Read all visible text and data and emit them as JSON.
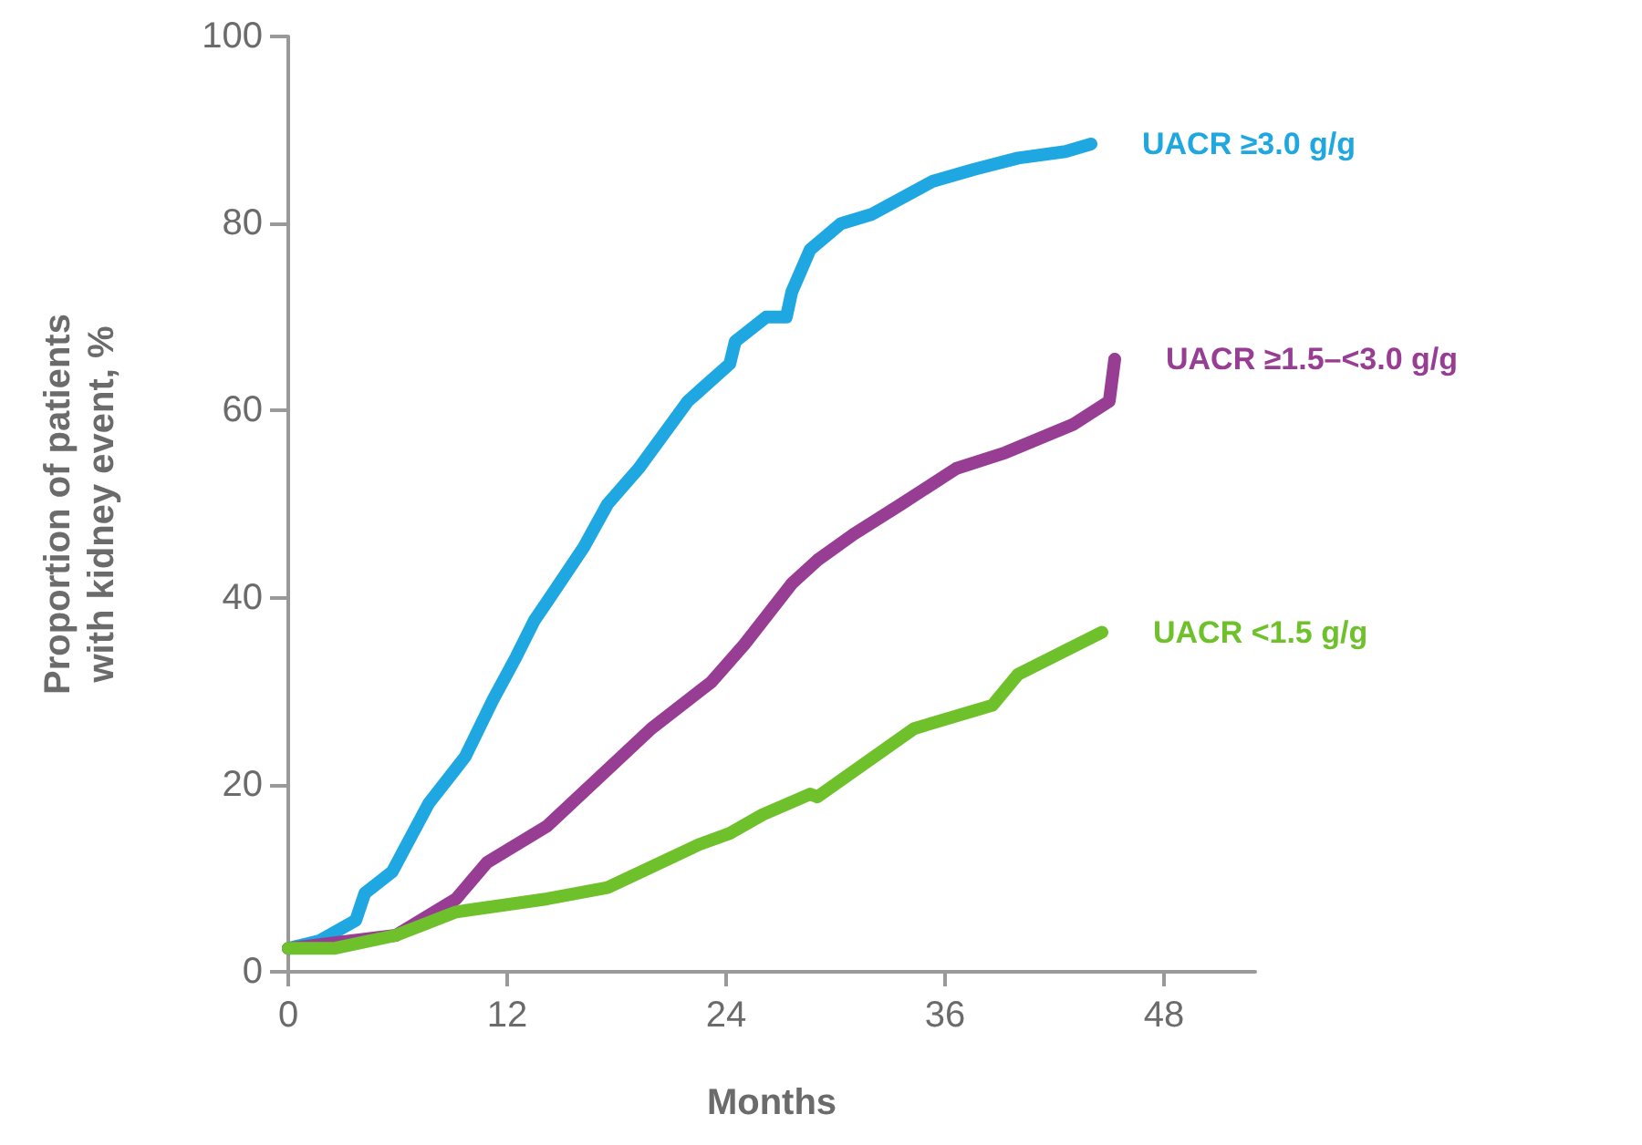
{
  "chart_data": {
    "type": "line",
    "xlabel": "Months",
    "ylabel": "Proportion of patients\nwith kidney event, %",
    "xlim": [
      0,
      53
    ],
    "xticks": [
      0,
      12,
      24,
      36,
      48
    ],
    "ylim": [
      0,
      100
    ],
    "yticks": [
      0,
      20,
      40,
      60,
      80,
      100
    ],
    "grid": false,
    "legend": false,
    "marker": "none",
    "line_style": "solid",
    "series": [
      {
        "name": "UACR ≥3.0 g/g",
        "color": "#1ea7e1",
        "x": [
          0,
          1.7,
          3.7,
          4.2,
          5.7,
          7.7,
          9.7,
          11.2,
          12.5,
          13.5,
          14.2,
          16.2,
          17.5,
          19.2,
          21.9,
          24.2,
          24.5,
          26.2,
          27.3,
          27.6,
          28.6,
          30.3,
          32,
          35.3,
          37.6,
          40,
          42.6,
          44
        ],
        "values": [
          2.5,
          3.3,
          5.5,
          8.4,
          10.7,
          18,
          23,
          29,
          33.7,
          37.6,
          39.6,
          45.4,
          50,
          53.8,
          61,
          65,
          67.4,
          70,
          70,
          72.7,
          77.2,
          80,
          81,
          84.5,
          85.8,
          87,
          87.7,
          88.5
        ]
      },
      {
        "name": "UACR ≥1.5–<3.0 g/g",
        "color": "#973d94",
        "x": [
          0,
          5.9,
          9.2,
          10.9,
          14.2,
          19.9,
          23.2,
          25,
          27.6,
          29,
          31,
          33.6,
          36.6,
          39.3,
          43,
          45,
          45.3
        ],
        "values": [
          2.5,
          3.9,
          7.8,
          11.7,
          15.6,
          26,
          31,
          35,
          41.5,
          44,
          46.8,
          50,
          53.8,
          55.5,
          58.5,
          61,
          65.5
        ]
      },
      {
        "name": "UACR <1.5 g/g",
        "color": "#6fc12b",
        "x": [
          0,
          2.5,
          5.9,
          9.2,
          14.2,
          17.5,
          22.5,
          24.2,
          26,
          28.6,
          29,
          34.3,
          38.6,
          40,
          44.6
        ],
        "values": [
          2.5,
          2.5,
          3.9,
          6.4,
          7.8,
          9,
          13.6,
          14.8,
          16.8,
          19,
          18.7,
          26,
          28.5,
          31.8,
          36.3
        ]
      }
    ]
  }
}
